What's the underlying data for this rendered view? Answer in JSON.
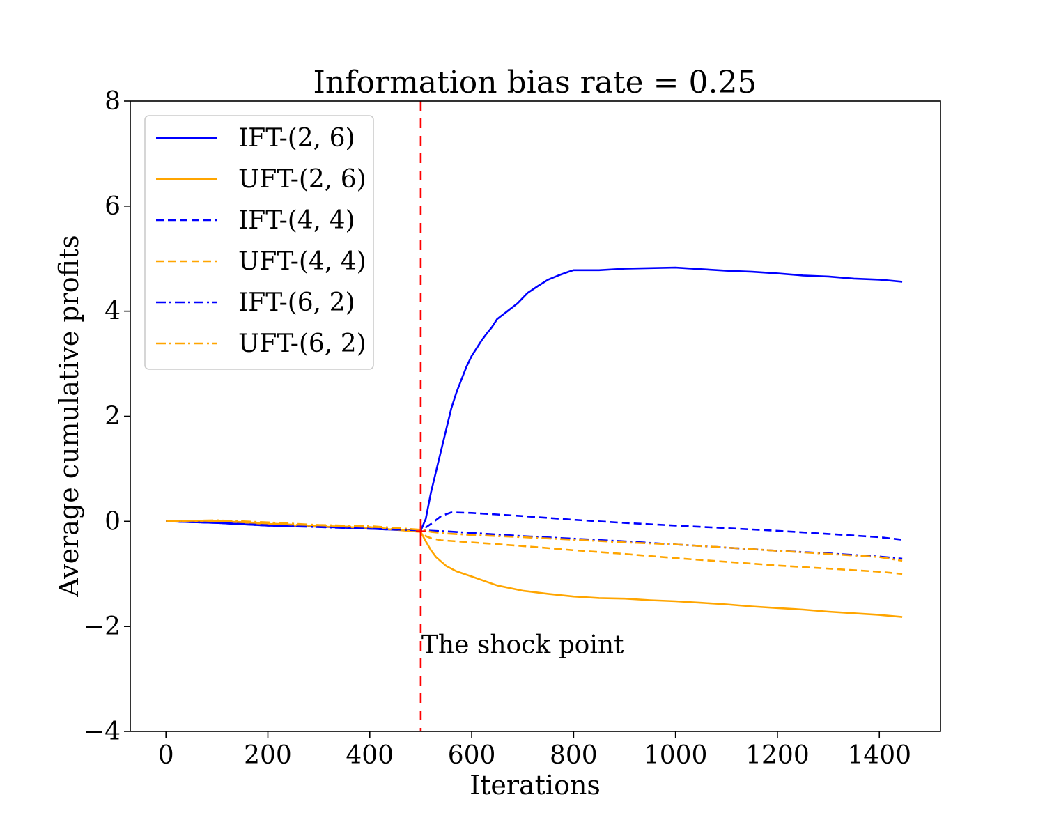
{
  "chart_data": {
    "type": "line",
    "title": "Information bias rate = 0.25",
    "xlabel": "Iterations",
    "ylabel": "Average cumulative profits",
    "xlim": [
      -70,
      1520
    ],
    "ylim": [
      -4,
      8
    ],
    "xticks": [
      0,
      200,
      400,
      600,
      800,
      1000,
      1200,
      1400
    ],
    "yticks": [
      -4,
      -2,
      0,
      2,
      4,
      6,
      8
    ],
    "ytick_labels": [
      "−4",
      "−2",
      "0",
      "2",
      "4",
      "6",
      "8"
    ],
    "grid": false,
    "legend_position": "top-left",
    "shock_line": {
      "x": 500,
      "color": "#ff0000",
      "label": "The shock point",
      "label_y": -2.35
    },
    "series": [
      {
        "name": "IFT-(2, 6)",
        "color": "#0000ff",
        "style": "solid",
        "x": [
          0,
          100,
          200,
          300,
          400,
          500,
          510,
          520,
          530,
          540,
          550,
          560,
          570,
          580,
          590,
          600,
          610,
          620,
          630,
          640,
          650,
          670,
          690,
          710,
          730,
          750,
          770,
          790,
          800,
          850,
          900,
          950,
          1000,
          1050,
          1100,
          1150,
          1200,
          1250,
          1300,
          1350,
          1400,
          1445
        ],
        "y": [
          0,
          -0.03,
          -0.08,
          -0.1,
          -0.14,
          -0.18,
          0.05,
          0.55,
          0.95,
          1.35,
          1.75,
          2.15,
          2.45,
          2.7,
          2.95,
          3.15,
          3.3,
          3.45,
          3.58,
          3.7,
          3.85,
          4.0,
          4.15,
          4.35,
          4.48,
          4.6,
          4.68,
          4.75,
          4.78,
          4.78,
          4.81,
          4.82,
          4.83,
          4.8,
          4.77,
          4.75,
          4.72,
          4.68,
          4.66,
          4.62,
          4.6,
          4.56
        ]
      },
      {
        "name": "UFT-(2, 6)",
        "color": "#ffa500",
        "style": "solid",
        "x": [
          0,
          100,
          200,
          300,
          400,
          500,
          510,
          520,
          530,
          550,
          570,
          600,
          650,
          700,
          750,
          800,
          850,
          900,
          950,
          1000,
          1050,
          1100,
          1150,
          1200,
          1250,
          1300,
          1350,
          1400,
          1445
        ],
        "y": [
          0,
          0.01,
          -0.05,
          -0.1,
          -0.12,
          -0.2,
          -0.38,
          -0.55,
          -0.68,
          -0.85,
          -0.95,
          -1.05,
          -1.22,
          -1.32,
          -1.38,
          -1.43,
          -1.46,
          -1.47,
          -1.5,
          -1.52,
          -1.55,
          -1.58,
          -1.62,
          -1.65,
          -1.68,
          -1.72,
          -1.75,
          -1.78,
          -1.82
        ]
      },
      {
        "name": "IFT-(4, 4)",
        "color": "#0000ff",
        "style": "dashed",
        "x": [
          0,
          100,
          200,
          300,
          400,
          500,
          520,
          540,
          560,
          600,
          700,
          800,
          900,
          1000,
          1100,
          1200,
          1300,
          1400,
          1445
        ],
        "y": [
          0,
          -0.03,
          -0.07,
          -0.1,
          -0.14,
          -0.18,
          -0.05,
          0.1,
          0.17,
          0.16,
          0.1,
          0.03,
          -0.03,
          -0.08,
          -0.13,
          -0.18,
          -0.24,
          -0.3,
          -0.35
        ]
      },
      {
        "name": "UFT-(4, 4)",
        "color": "#ffa500",
        "style": "dashed",
        "x": [
          0,
          100,
          200,
          300,
          400,
          500,
          510,
          520,
          540,
          600,
          700,
          800,
          900,
          1000,
          1100,
          1200,
          1300,
          1400,
          1445
        ],
        "y": [
          0,
          0.01,
          -0.04,
          -0.09,
          -0.11,
          -0.2,
          -0.28,
          -0.32,
          -0.36,
          -0.4,
          -0.47,
          -0.55,
          -0.62,
          -0.7,
          -0.77,
          -0.84,
          -0.9,
          -0.96,
          -1.0
        ]
      },
      {
        "name": "IFT-(6, 2)",
        "color": "#0000ff",
        "style": "dashdot",
        "x": [
          0,
          100,
          200,
          300,
          400,
          500,
          550,
          600,
          700,
          800,
          900,
          1000,
          1100,
          1200,
          1300,
          1400,
          1445
        ],
        "y": [
          0,
          -0.03,
          -0.08,
          -0.11,
          -0.14,
          -0.17,
          -0.19,
          -0.22,
          -0.28,
          -0.33,
          -0.38,
          -0.44,
          -0.5,
          -0.56,
          -0.61,
          -0.67,
          -0.71
        ]
      },
      {
        "name": "UFT-(6, 2)",
        "color": "#ffa500",
        "style": "dashdot",
        "x": [
          0,
          100,
          200,
          300,
          400,
          500,
          520,
          550,
          600,
          700,
          800,
          900,
          1000,
          1100,
          1200,
          1300,
          1400,
          1445
        ],
        "y": [
          0,
          0.02,
          -0.02,
          -0.07,
          -0.09,
          -0.16,
          -0.2,
          -0.23,
          -0.26,
          -0.3,
          -0.35,
          -0.4,
          -0.44,
          -0.5,
          -0.56,
          -0.62,
          -0.68,
          -0.75
        ]
      }
    ]
  }
}
